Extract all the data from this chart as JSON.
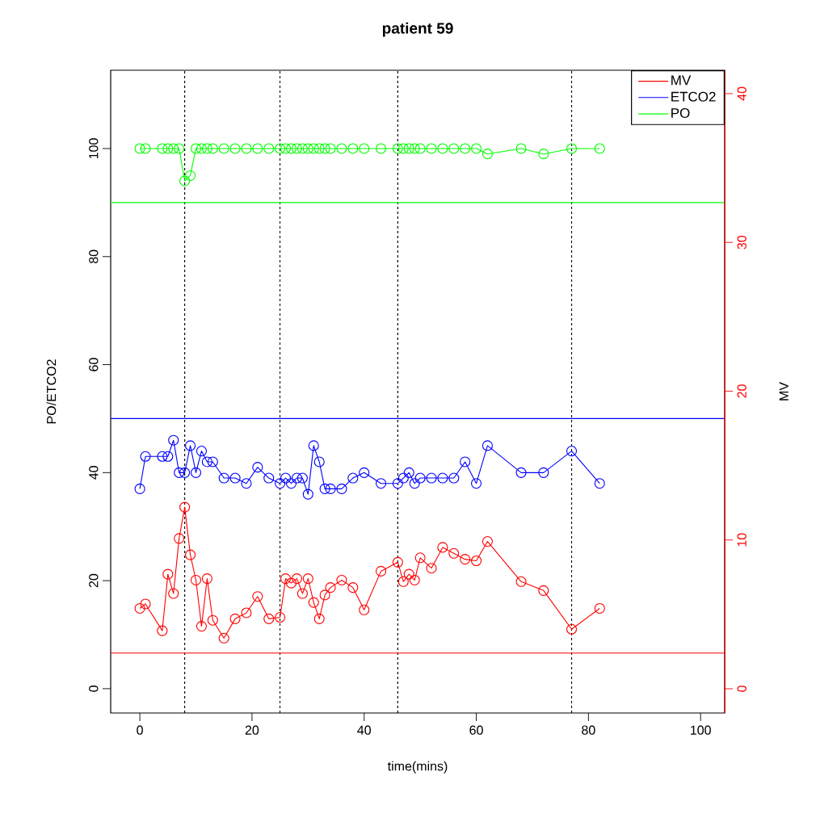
{
  "chart_data": {
    "type": "line",
    "title": "patient 59",
    "xlabel": "time(mins)",
    "ylabel": "PO/ETCO2",
    "y2label": "MV",
    "x": [
      0,
      1,
      4,
      5,
      6,
      7,
      8,
      9,
      10,
      11,
      12,
      13,
      15,
      17,
      19,
      21,
      23,
      25,
      26,
      27,
      28,
      29,
      30,
      31,
      32,
      33,
      34,
      36,
      38,
      40,
      43,
      46,
      47,
      48,
      49,
      50,
      52,
      54,
      56,
      58,
      60,
      62,
      68,
      72,
      77,
      82
    ],
    "series": [
      {
        "name": "MV",
        "color": "#ff0000",
        "axis": "y2",
        "values": [
          5.4,
          5.7,
          3.9,
          7.7,
          6.4,
          10.1,
          12.2,
          9.0,
          7.3,
          4.2,
          7.4,
          4.6,
          3.4,
          4.7,
          5.1,
          6.2,
          4.7,
          4.8,
          7.4,
          7.1,
          7.4,
          6.4,
          7.4,
          5.8,
          4.7,
          6.3,
          6.8,
          7.3,
          6.8,
          5.3,
          7.9,
          8.5,
          7.2,
          7.7,
          7.3,
          8.8,
          8.1,
          9.5,
          9.1,
          8.7,
          8.6,
          9.9,
          7.2,
          6.6,
          4.0,
          5.4
        ]
      },
      {
        "name": "ETCO2",
        "color": "#0000ff",
        "values": [
          37,
          43,
          43,
          43,
          46,
          40,
          40,
          45,
          40,
          44,
          42,
          42,
          39,
          39,
          38,
          41,
          39,
          38,
          39,
          38,
          39,
          39,
          36,
          45,
          42,
          37,
          37,
          37,
          39,
          40,
          38,
          38,
          39,
          40,
          38,
          39,
          39,
          39,
          39,
          42,
          38,
          45,
          40,
          40,
          44,
          38
        ]
      },
      {
        "name": "PO",
        "color": "#00ff00",
        "values": [
          100,
          100,
          100,
          100,
          100,
          100,
          94,
          95,
          100,
          100,
          100,
          100,
          100,
          100,
          100,
          100,
          100,
          100,
          100,
          100,
          100,
          100,
          100,
          100,
          100,
          100,
          100,
          100,
          100,
          100,
          100,
          100,
          100,
          100,
          100,
          100,
          100,
          100,
          100,
          100,
          100,
          99,
          100,
          99,
          100,
          100
        ]
      }
    ],
    "xlim": [
      -5.2,
      104.3
    ],
    "ylim": [
      -4.5,
      114.5
    ],
    "y2lim": [
      -1.63,
      41.57
    ],
    "xticks": [
      0,
      20,
      40,
      60,
      80,
      100
    ],
    "yticks": [
      0,
      20,
      40,
      60,
      80,
      100
    ],
    "y2ticks": [
      0,
      10,
      20,
      30,
      40
    ],
    "ref_lines": [
      {
        "axis": "x",
        "value": 8,
        "color": "#000000",
        "line_style": "dashed"
      },
      {
        "axis": "x",
        "value": 25,
        "color": "#000000",
        "line_style": "dashed"
      },
      {
        "axis": "x",
        "value": 46,
        "color": "#000000",
        "line_style": "dashed"
      },
      {
        "axis": "x",
        "value": 77,
        "color": "#000000",
        "line_style": "dashed"
      },
      {
        "axis": "y",
        "value": 90,
        "color": "#00ff00",
        "line_style": "solid"
      },
      {
        "axis": "y",
        "value": 50,
        "color": "#0000ff",
        "line_style": "solid"
      },
      {
        "axis": "y2",
        "value": 2.4,
        "color": "#ff0000",
        "line_style": "solid"
      }
    ],
    "legend": "top right",
    "marker": "circle",
    "line_style": "solid"
  }
}
